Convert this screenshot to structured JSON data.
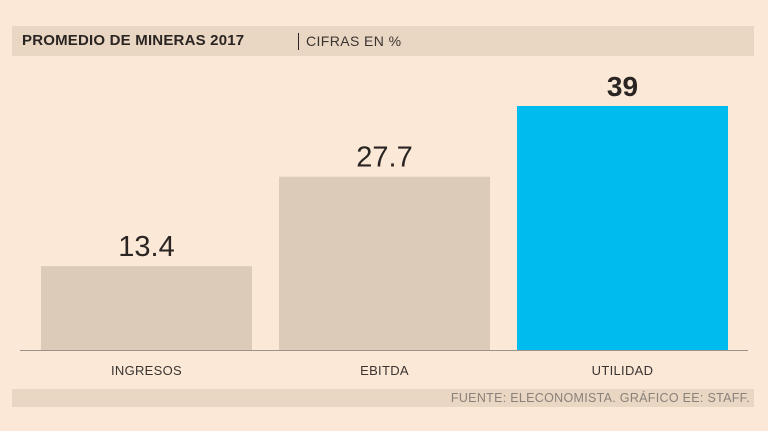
{
  "header": {
    "title": "PROMEDIO DE MINERAS 2017",
    "subtitle": "CIFRAS EN %"
  },
  "footer": {
    "source": "FUENTE: ELECONOMISTA. GRÁFICO EE: STAFF."
  },
  "colors": {
    "background": "#fbe8d6",
    "band": "#e9d6c3",
    "bar_default": "#dccbb9",
    "bar_highlight": "#00bbee",
    "axis": "#9e938a",
    "text": "#2a2522"
  },
  "chart_data": {
    "type": "bar",
    "title": "PROMEDIO DE MINERAS 2017",
    "subtitle": "CIFRAS EN %",
    "categories": [
      "INGRESOS",
      "EBITDA",
      "UTILIDAD"
    ],
    "values": [
      13.4,
      27.7,
      39
    ],
    "value_labels": [
      "13.4",
      "27.7",
      "39"
    ],
    "highlight_index": 2,
    "xlabel": "",
    "ylabel": "",
    "ylim": [
      0,
      39
    ],
    "grid": false
  }
}
